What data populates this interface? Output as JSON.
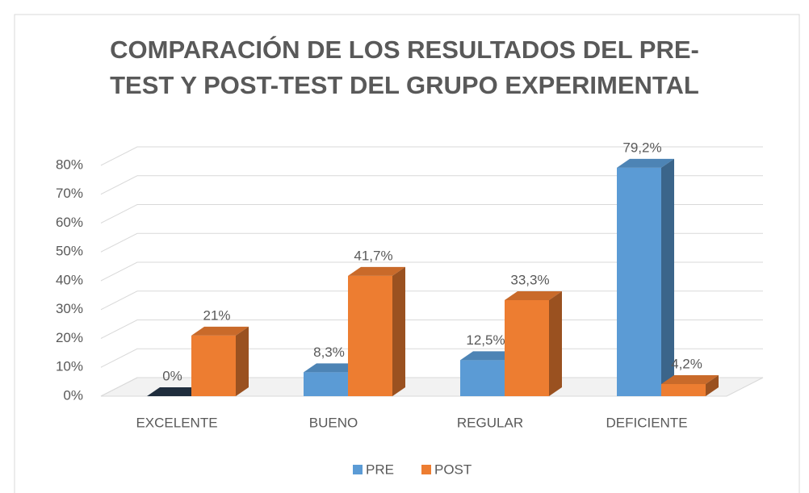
{
  "chart_data": {
    "type": "bar3d",
    "title": "COMPARACIÓN DE LOS RESULTADOS DEL PRE-TEST Y POST-TEST DEL GRUPO EXPERIMENTAL",
    "categories": [
      "EXCELENTE",
      "BUENO",
      "REGULAR",
      "DEFICIENTE"
    ],
    "series": [
      {
        "name": "PRE",
        "color": "#5b9bd5",
        "values": [
          0,
          8.3,
          12.5,
          79.2
        ],
        "value_labels": [
          "0%",
          "8,3%",
          "12,5%",
          "79,2%"
        ]
      },
      {
        "name": "POST",
        "color": "#ed7d31",
        "values": [
          21,
          41.7,
          33.3,
          4.2
        ],
        "value_labels": [
          "21%",
          "41,7%",
          "33,3%",
          "4,2%"
        ]
      }
    ],
    "ylim": [
      0,
      80
    ],
    "yticks": [
      {
        "value": 0,
        "label": "0%"
      },
      {
        "value": 10,
        "label": "10%"
      },
      {
        "value": 20,
        "label": "20%"
      },
      {
        "value": 30,
        "label": "30%"
      },
      {
        "value": 40,
        "label": "40%"
      },
      {
        "value": 50,
        "label": "50%"
      },
      {
        "value": 60,
        "label": "60%"
      },
      {
        "value": 70,
        "label": "70%"
      },
      {
        "value": 80,
        "label": "80%"
      }
    ],
    "grid": true,
    "legend": "bottom"
  }
}
